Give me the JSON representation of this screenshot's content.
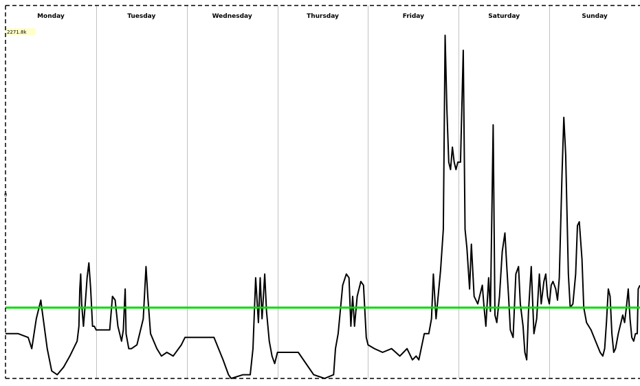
{
  "chart_data": {
    "type": "line",
    "title": "",
    "xlabel": "",
    "ylabel": "",
    "categories": [
      "Monday",
      "Tuesday",
      "Wednesday",
      "Thursday",
      "Friday",
      "Saturday",
      "Sunday"
    ],
    "y_top_tag": "2271.8k",
    "y_mid_tick": "0",
    "xlim": [
      0,
      7
    ],
    "ylim": [
      0,
      100
    ],
    "grid": "day separators only",
    "legend": "none",
    "colors": {
      "series": "#000000",
      "threshold": "#00dd00",
      "separators": "#c0c0c0",
      "border": "#000000"
    },
    "threshold": 19,
    "series": [
      {
        "values": [
          [
            0.0,
            12
          ],
          [
            0.14,
            12
          ],
          [
            0.25,
            11
          ],
          [
            0.29,
            8
          ],
          [
            0.34,
            16
          ],
          [
            0.39,
            21
          ],
          [
            0.4,
            19
          ],
          [
            0.46,
            8
          ],
          [
            0.51,
            2
          ],
          [
            0.57,
            1
          ],
          [
            0.64,
            3
          ],
          [
            0.71,
            6
          ],
          [
            0.79,
            10
          ],
          [
            0.81,
            14
          ],
          [
            0.82,
            24
          ],
          [
            0.83,
            28
          ],
          [
            0.84,
            20
          ],
          [
            0.86,
            14
          ],
          [
            0.88,
            20
          ],
          [
            0.9,
            27
          ],
          [
            0.92,
            31
          ],
          [
            0.94,
            24
          ],
          [
            0.96,
            14
          ],
          [
            0.98,
            14
          ],
          [
            1.0,
            13
          ],
          [
            1.15,
            13
          ],
          [
            1.18,
            22
          ],
          [
            1.21,
            21
          ],
          [
            1.24,
            14
          ],
          [
            1.28,
            10
          ],
          [
            1.3,
            13
          ],
          [
            1.32,
            24
          ],
          [
            1.33,
            12
          ],
          [
            1.36,
            8
          ],
          [
            1.39,
            8
          ],
          [
            1.45,
            9
          ],
          [
            1.52,
            16
          ],
          [
            1.55,
            30
          ],
          [
            1.57,
            22
          ],
          [
            1.6,
            12
          ],
          [
            1.67,
            8
          ],
          [
            1.72,
            6
          ],
          [
            1.78,
            7
          ],
          [
            1.85,
            6
          ],
          [
            1.94,
            9
          ],
          [
            1.98,
            11
          ],
          [
            2.0,
            11
          ],
          [
            2.3,
            11
          ],
          [
            2.4,
            5
          ],
          [
            2.46,
            1
          ],
          [
            2.49,
            0
          ],
          [
            2.62,
            1
          ],
          [
            2.7,
            1
          ],
          [
            2.73,
            8
          ],
          [
            2.76,
            27
          ],
          [
            2.79,
            15
          ],
          [
            2.81,
            27
          ],
          [
            2.83,
            16
          ],
          [
            2.86,
            28
          ],
          [
            2.88,
            18
          ],
          [
            2.91,
            10
          ],
          [
            2.94,
            6
          ],
          [
            2.97,
            4
          ],
          [
            3.0,
            7
          ],
          [
            3.23,
            7
          ],
          [
            3.4,
            1
          ],
          [
            3.52,
            0
          ],
          [
            3.62,
            1
          ],
          [
            3.64,
            8
          ],
          [
            3.67,
            12
          ],
          [
            3.72,
            25
          ],
          [
            3.76,
            28
          ],
          [
            3.79,
            27
          ],
          [
            3.81,
            14
          ],
          [
            3.83,
            22
          ],
          [
            3.85,
            14
          ],
          [
            3.88,
            22
          ],
          [
            3.92,
            26
          ],
          [
            3.95,
            25
          ],
          [
            3.98,
            11
          ],
          [
            4.0,
            9
          ],
          [
            4.07,
            8
          ],
          [
            4.16,
            7
          ],
          [
            4.26,
            8
          ],
          [
            4.35,
            6
          ],
          [
            4.39,
            7
          ],
          [
            4.43,
            8
          ],
          [
            4.49,
            5
          ],
          [
            4.53,
            6
          ],
          [
            4.56,
            5
          ],
          [
            4.62,
            12
          ],
          [
            4.67,
            12
          ],
          [
            4.7,
            16
          ],
          [
            4.72,
            28
          ],
          [
            4.75,
            16
          ],
          [
            4.8,
            29
          ],
          [
            4.83,
            40
          ],
          [
            4.85,
            92
          ],
          [
            4.87,
            72
          ],
          [
            4.89,
            58
          ],
          [
            4.91,
            56
          ],
          [
            4.93,
            62
          ],
          [
            4.95,
            58
          ],
          [
            4.97,
            56
          ],
          [
            4.99,
            58
          ],
          [
            5.02,
            58
          ],
          [
            5.05,
            88
          ],
          [
            5.07,
            40
          ],
          [
            5.09,
            35
          ],
          [
            5.12,
            24
          ],
          [
            5.14,
            36
          ],
          [
            5.17,
            22
          ],
          [
            5.21,
            20
          ],
          [
            5.26,
            25
          ],
          [
            5.28,
            19
          ],
          [
            5.3,
            14
          ],
          [
            5.33,
            27
          ],
          [
            5.35,
            18
          ],
          [
            5.38,
            68
          ],
          [
            5.4,
            17
          ],
          [
            5.42,
            15
          ],
          [
            5.45,
            22
          ],
          [
            5.48,
            34
          ],
          [
            5.51,
            39
          ],
          [
            5.53,
            30
          ],
          [
            5.55,
            22
          ],
          [
            5.57,
            13
          ],
          [
            5.6,
            11
          ],
          [
            5.63,
            28
          ],
          [
            5.66,
            30
          ],
          [
            5.68,
            20
          ],
          [
            5.71,
            14
          ],
          [
            5.73,
            7
          ],
          [
            5.75,
            5
          ],
          [
            5.77,
            18
          ],
          [
            5.8,
            30
          ],
          [
            5.83,
            12
          ],
          [
            5.86,
            16
          ],
          [
            5.89,
            28
          ],
          [
            5.91,
            20
          ],
          [
            5.94,
            26
          ],
          [
            5.96,
            28
          ],
          [
            5.98,
            22
          ],
          [
            6.0,
            20
          ],
          [
            6.02,
            25
          ],
          [
            6.04,
            26
          ],
          [
            6.07,
            24
          ],
          [
            6.09,
            21
          ],
          [
            6.11,
            27
          ],
          [
            6.14,
            55
          ],
          [
            6.16,
            70
          ],
          [
            6.18,
            60
          ],
          [
            6.21,
            28
          ],
          [
            6.23,
            19
          ],
          [
            6.26,
            20
          ],
          [
            6.29,
            28
          ],
          [
            6.31,
            41
          ],
          [
            6.33,
            42
          ],
          [
            6.36,
            32
          ],
          [
            6.38,
            19
          ],
          [
            6.41,
            15
          ],
          [
            6.46,
            13
          ],
          [
            6.51,
            10
          ],
          [
            6.56,
            7
          ],
          [
            6.59,
            6
          ],
          [
            6.61,
            8
          ],
          [
            6.63,
            15
          ],
          [
            6.65,
            24
          ],
          [
            6.67,
            22
          ],
          [
            6.69,
            12
          ],
          [
            6.71,
            7
          ],
          [
            6.73,
            8
          ],
          [
            6.76,
            12
          ],
          [
            6.79,
            15
          ],
          [
            6.81,
            17
          ],
          [
            6.83,
            15
          ],
          [
            6.85,
            19
          ],
          [
            6.87,
            24
          ],
          [
            6.89,
            16
          ],
          [
            6.91,
            11
          ],
          [
            6.93,
            10
          ],
          [
            6.95,
            12
          ],
          [
            6.97,
            12
          ],
          [
            6.98,
            24
          ],
          [
            7.0,
            25
          ]
        ]
      }
    ]
  }
}
